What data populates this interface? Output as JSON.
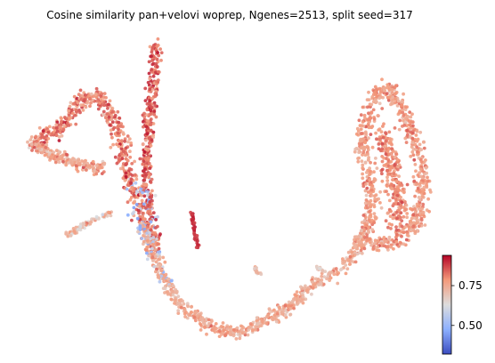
{
  "chart_data": {
    "type": "scatter",
    "title": "Cosine similarity pan+velovi woprep, Ngenes=2513, split seed=317",
    "xlabel": "",
    "ylabel": "",
    "axes_visible": false,
    "colormap": "coolwarm",
    "colorbar": {
      "range": [
        0.32,
        0.94
      ],
      "ticks": [
        0.5,
        0.75
      ],
      "tick_labels": [
        "0.50",
        "0.75"
      ]
    },
    "point_colors": {
      "low": "#3b4cc0",
      "mid": "#dddddd",
      "high": "#b40426"
    },
    "regions": [
      {
        "name": "upper-left branch",
        "mean_value": 0.82
      },
      {
        "name": "vertical stem",
        "mean_value": 0.88
      },
      {
        "name": "central descending band",
        "mean_value": 0.6
      },
      {
        "name": "bottom arc",
        "mean_value": 0.72
      },
      {
        "name": "right cluster",
        "mean_value": 0.78
      }
    ]
  }
}
